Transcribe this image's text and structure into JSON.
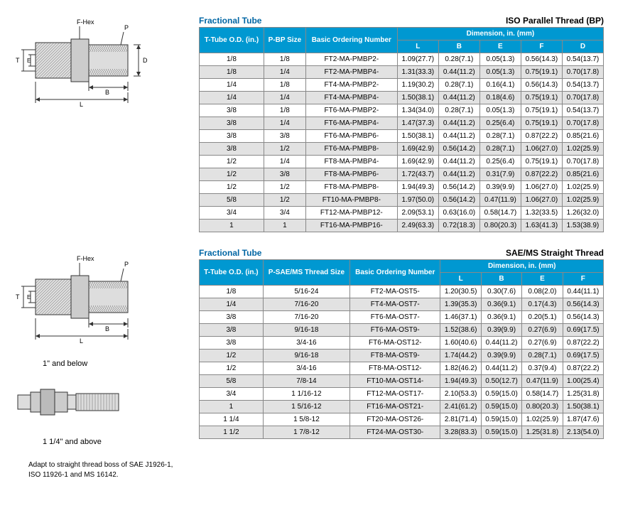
{
  "diagram_labels": {
    "fhex": "F-Hex",
    "p": "P",
    "d": "D",
    "t": "T",
    "e": "E",
    "b": "B",
    "l": "L"
  },
  "captions": {
    "below": "1\"  and  below",
    "above": "1 1/4\" and above"
  },
  "note": "Adapt to straight thread boss of SAE J1926-1, ISO 11926-1 and MS 16142.",
  "table1": {
    "title_left": "Fractional Tube",
    "title_right": "ISO Parallel Thread (BP)",
    "headers": {
      "od": "T-Tube O.D. (in.)",
      "size": "P-BP Size",
      "order": "Basic Ordering Number",
      "dim": "Dimension, in. (mm)",
      "l": "L",
      "b": "B",
      "e": "E",
      "f": "F",
      "d": "D"
    },
    "rows": [
      [
        "1/8",
        "1/8",
        "FT2-MA-PMBP2-",
        "1.09(27.7)",
        "0.28(7.1)",
        "0.05(1.3)",
        "0.56(14.3)",
        "0.54(13.7)"
      ],
      [
        "1/8",
        "1/4",
        "FT2-MA-PMBP4-",
        "1.31(33.3)",
        "0.44(11.2)",
        "0.05(1.3)",
        "0.75(19.1)",
        "0.70(17.8)"
      ],
      [
        "1/4",
        "1/8",
        "FT4-MA-PMBP2-",
        "1.19(30.2)",
        "0.28(7.1)",
        "0.16(4.1)",
        "0.56(14.3)",
        "0.54(13.7)"
      ],
      [
        "1/4",
        "1/4",
        "FT4-MA-PMBP4-",
        "1.50(38.1)",
        "0.44(11.2)",
        "0.18(4.6)",
        "0.75(19.1)",
        "0.70(17.8)"
      ],
      [
        "3/8",
        "1/8",
        "FT6-MA-PMBP2-",
        "1.34(34.0)",
        "0.28(7.1)",
        "0.05(1.3)",
        "0.75(19.1)",
        "0.54(13.7)"
      ],
      [
        "3/8",
        "1/4",
        "FT6-MA-PMBP4-",
        "1.47(37.3)",
        "0.44(11.2)",
        "0.25(6.4)",
        "0.75(19.1)",
        "0.70(17.8)"
      ],
      [
        "3/8",
        "3/8",
        "FT6-MA-PMBP6-",
        "1.50(38.1)",
        "0.44(11.2)",
        "0.28(7.1)",
        "0.87(22.2)",
        "0.85(21.6)"
      ],
      [
        "3/8",
        "1/2",
        "FT6-MA-PMBP8-",
        "1.69(42.9)",
        "0.56(14.2)",
        "0.28(7.1)",
        "1.06(27.0)",
        "1.02(25.9)"
      ],
      [
        "1/2",
        "1/4",
        "FT8-MA-PMBP4-",
        "1.69(42.9)",
        "0.44(11.2)",
        "0.25(6.4)",
        "0.75(19.1)",
        "0.70(17.8)"
      ],
      [
        "1/2",
        "3/8",
        "FT8-MA-PMBP6-",
        "1.72(43.7)",
        "0.44(11.2)",
        "0.31(7.9)",
        "0.87(22.2)",
        "0.85(21.6)"
      ],
      [
        "1/2",
        "1/2",
        "FT8-MA-PMBP8-",
        "1.94(49.3)",
        "0.56(14.2)",
        "0.39(9.9)",
        "1.06(27.0)",
        "1.02(25.9)"
      ],
      [
        "5/8",
        "1/2",
        "FT10-MA-PMBP8-",
        "1.97(50.0)",
        "0.56(14.2)",
        "0.47(11.9)",
        "1.06(27.0)",
        "1.02(25.9)"
      ],
      [
        "3/4",
        "3/4",
        "FT12-MA-PMBP12-",
        "2.09(53.1)",
        "0.63(16.0)",
        "0.58(14.7)",
        "1.32(33.5)",
        "1.26(32.0)"
      ],
      [
        "1",
        "1",
        "FT16-MA-PMBP16-",
        "2.49(63.3)",
        "0.72(18.3)",
        "0.80(20.3)",
        "1.63(41.3)",
        "1.53(38.9)"
      ]
    ]
  },
  "table2": {
    "title_left": "Fractional Tube",
    "title_right": "SAE/MS Straight Thread",
    "headers": {
      "od": "T-Tube O.D. (in.)",
      "size": "P-SAE/MS Thread Size",
      "order": "Basic Ordering Number",
      "dim": "Dimension, in. (mm)",
      "l": "L",
      "b": "B",
      "e": "E",
      "f": "F"
    },
    "rows": [
      [
        "1/8",
        "5/16-24",
        "FT2-MA-OST5-",
        "1.20(30.5)",
        "0.30(7.6)",
        "0.08(2.0)",
        "0.44(11.1)"
      ],
      [
        "1/4",
        "7/16-20",
        "FT4-MA-OST7-",
        "1.39(35.3)",
        "0.36(9.1)",
        "0.17(4.3)",
        "0.56(14.3)"
      ],
      [
        "3/8",
        "7/16-20",
        "FT6-MA-OST7-",
        "1.46(37.1)",
        "0.36(9.1)",
        "0.20(5.1)",
        "0.56(14.3)"
      ],
      [
        "3/8",
        "9/16-18",
        "FT6-MA-OST9-",
        "1.52(38.6)",
        "0.39(9.9)",
        "0.27(6.9)",
        "0.69(17.5)"
      ],
      [
        "3/8",
        "3/4-16",
        "FT6-MA-OST12-",
        "1.60(40.6)",
        "0.44(11.2)",
        "0.27(6.9)",
        "0.87(22.2)"
      ],
      [
        "1/2",
        "9/16-18",
        "FT8-MA-OST9-",
        "1.74(44.2)",
        "0.39(9.9)",
        "0.28(7.1)",
        "0.69(17.5)"
      ],
      [
        "1/2",
        "3/4-16",
        "FT8-MA-OST12-",
        "1.82(46.2)",
        "0.44(11.2)",
        "0.37(9.4)",
        "0.87(22.2)"
      ],
      [
        "5/8",
        "7/8-14",
        "FT10-MA-OST14-",
        "1.94(49.3)",
        "0.50(12.7)",
        "0.47(11.9)",
        "1.00(25.4)"
      ],
      [
        "3/4",
        "1 1/16-12",
        "FT12-MA-OST17-",
        "2.10(53.3)",
        "0.59(15.0)",
        "0.58(14.7)",
        "1.25(31.8)"
      ],
      [
        "1",
        "1 5/16-12",
        "FT16-MA-OST21-",
        "2.41(61.2)",
        "0.59(15.0)",
        "0.80(20.3)",
        "1.50(38.1)"
      ],
      [
        "1 1/4",
        "1 5/8-12",
        "FT20-MA-OST26-",
        "2.81(71.4)",
        "0.59(15.0)",
        "1.02(25.9)",
        "1.87(47.6)"
      ],
      [
        "1 1/2",
        "1 7/8-12",
        "FT24-MA-OST30-",
        "3.28(83.3)",
        "0.59(15.0)",
        "1.25(31.8)",
        "2.13(54.0)"
      ]
    ]
  }
}
